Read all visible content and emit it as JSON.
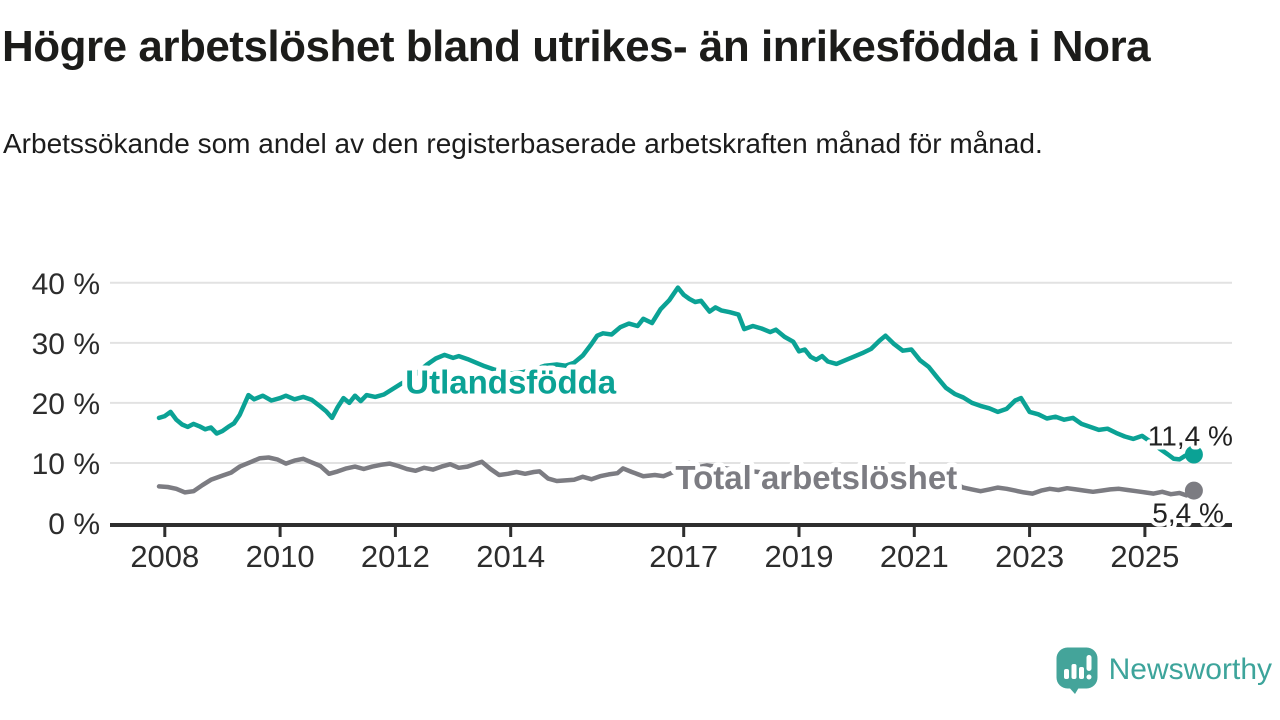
{
  "title": "Högre arbetslöshet bland utrikes- än inrikesfödda i Nora",
  "subtitle": "Arbetssökande som andel av den registerbaserade arbetskraften månad för månad.",
  "branding": {
    "name": "Newsworthy",
    "icon": "speech-bubble-bar-chart-icon",
    "color": "#3da49b"
  },
  "colors": {
    "foreign_born_line": "#0ba295",
    "total_line": "#7c7c82",
    "grid": "#e2e2e2",
    "axis": "#2e2e2e",
    "tick_text": "#2d2d2d",
    "annotation_text": "#222222",
    "background": "#ffffff"
  },
  "chart_data": {
    "type": "line",
    "title": "Högre arbetslöshet bland utrikes- än inrikesfödda i Nora",
    "subtitle": "Arbetssökande som andel av den registerbaserade arbetskraften månad för månad.",
    "x_unit": "year",
    "y_unit": "percent of registered labour force",
    "xlim": [
      2007.05,
      2026.51
    ],
    "ylim": [
      0,
      43.3
    ],
    "grid": "horizontal",
    "legend": "inline-labels",
    "x_ticks": [
      {
        "value": 2008,
        "label": "2008"
      },
      {
        "value": 2010,
        "label": "2010"
      },
      {
        "value": 2012,
        "label": "2012"
      },
      {
        "value": 2014,
        "label": "2014"
      },
      {
        "value": 2017,
        "label": "2017"
      },
      {
        "value": 2019,
        "label": "2019"
      },
      {
        "value": 2021,
        "label": "2021"
      },
      {
        "value": 2023,
        "label": "2023"
      },
      {
        "value": 2025,
        "label": "2025"
      }
    ],
    "y_ticks": [
      {
        "value": 0,
        "label": "0 %"
      },
      {
        "value": 10,
        "label": "10 %"
      },
      {
        "value": 20,
        "label": "20 %"
      },
      {
        "value": 30,
        "label": "30 %"
      },
      {
        "value": 40,
        "label": "40 %"
      }
    ],
    "series": [
      {
        "id": "utlandsfodda",
        "name": "Utlandsfödda",
        "color": "#0ba295",
        "end_label": "11,4 %",
        "last_value": 11.4,
        "label_anchor": {
          "x": 2014.0,
          "y": 23.6
        },
        "points": [
          [
            2007.9,
            17.5
          ],
          [
            2008.0,
            17.8
          ],
          [
            2008.1,
            18.5
          ],
          [
            2008.2,
            17.2
          ],
          [
            2008.3,
            16.4
          ],
          [
            2008.4,
            16.0
          ],
          [
            2008.5,
            16.5
          ],
          [
            2008.6,
            16.1
          ],
          [
            2008.7,
            15.6
          ],
          [
            2008.8,
            15.9
          ],
          [
            2008.9,
            14.9
          ],
          [
            2009.0,
            15.3
          ],
          [
            2009.1,
            16.0
          ],
          [
            2009.2,
            16.6
          ],
          [
            2009.3,
            18.0
          ],
          [
            2009.45,
            21.3
          ],
          [
            2009.55,
            20.6
          ],
          [
            2009.7,
            21.2
          ],
          [
            2009.85,
            20.4
          ],
          [
            2010.0,
            20.8
          ],
          [
            2010.1,
            21.2
          ],
          [
            2010.25,
            20.6
          ],
          [
            2010.4,
            21.0
          ],
          [
            2010.55,
            20.5
          ],
          [
            2010.7,
            19.4
          ],
          [
            2010.8,
            18.6
          ],
          [
            2010.9,
            17.5
          ],
          [
            2011.0,
            19.3
          ],
          [
            2011.1,
            20.8
          ],
          [
            2011.2,
            20.0
          ],
          [
            2011.3,
            21.2
          ],
          [
            2011.4,
            20.3
          ],
          [
            2011.5,
            21.3
          ],
          [
            2011.65,
            21.0
          ],
          [
            2011.8,
            21.4
          ],
          [
            2011.95,
            22.3
          ],
          [
            2012.1,
            23.2
          ],
          [
            2012.25,
            24.0
          ],
          [
            2012.4,
            25.2
          ],
          [
            2012.55,
            26.4
          ],
          [
            2012.7,
            27.4
          ],
          [
            2012.85,
            28.0
          ],
          [
            2013.0,
            27.5
          ],
          [
            2013.1,
            27.8
          ],
          [
            2013.25,
            27.3
          ],
          [
            2013.4,
            26.7
          ],
          [
            2013.55,
            26.1
          ],
          [
            2013.7,
            25.6
          ],
          [
            2013.85,
            25.2
          ],
          [
            2014.0,
            24.9
          ],
          [
            2014.2,
            25.1
          ],
          [
            2014.4,
            25.6
          ],
          [
            2014.6,
            26.2
          ],
          [
            2014.8,
            26.4
          ],
          [
            2014.95,
            26.2
          ],
          [
            2015.1,
            26.7
          ],
          [
            2015.25,
            27.9
          ],
          [
            2015.4,
            29.8
          ],
          [
            2015.5,
            31.2
          ],
          [
            2015.6,
            31.6
          ],
          [
            2015.75,
            31.4
          ],
          [
            2015.9,
            32.6
          ],
          [
            2016.05,
            33.2
          ],
          [
            2016.2,
            32.8
          ],
          [
            2016.3,
            34.0
          ],
          [
            2016.45,
            33.3
          ],
          [
            2016.6,
            35.6
          ],
          [
            2016.75,
            37.1
          ],
          [
            2016.9,
            39.2
          ],
          [
            2017.0,
            38.0
          ],
          [
            2017.1,
            37.3
          ],
          [
            2017.2,
            36.8
          ],
          [
            2017.3,
            37.0
          ],
          [
            2017.45,
            35.2
          ],
          [
            2017.55,
            35.9
          ],
          [
            2017.65,
            35.4
          ],
          [
            2017.8,
            35.1
          ],
          [
            2017.95,
            34.7
          ],
          [
            2018.05,
            32.3
          ],
          [
            2018.2,
            32.8
          ],
          [
            2018.35,
            32.4
          ],
          [
            2018.5,
            31.8
          ],
          [
            2018.6,
            32.2
          ],
          [
            2018.75,
            31.0
          ],
          [
            2018.9,
            30.2
          ],
          [
            2019.0,
            28.6
          ],
          [
            2019.1,
            28.9
          ],
          [
            2019.2,
            27.7
          ],
          [
            2019.3,
            27.2
          ],
          [
            2019.4,
            27.8
          ],
          [
            2019.5,
            26.9
          ],
          [
            2019.65,
            26.5
          ],
          [
            2019.8,
            27.1
          ],
          [
            2019.95,
            27.7
          ],
          [
            2020.1,
            28.3
          ],
          [
            2020.25,
            29.0
          ],
          [
            2020.4,
            30.4
          ],
          [
            2020.5,
            31.2
          ],
          [
            2020.65,
            29.8
          ],
          [
            2020.8,
            28.7
          ],
          [
            2020.95,
            28.9
          ],
          [
            2021.1,
            27.1
          ],
          [
            2021.25,
            26.0
          ],
          [
            2021.4,
            24.2
          ],
          [
            2021.55,
            22.5
          ],
          [
            2021.7,
            21.5
          ],
          [
            2021.85,
            20.9
          ],
          [
            2022.0,
            20.0
          ],
          [
            2022.15,
            19.5
          ],
          [
            2022.3,
            19.1
          ],
          [
            2022.45,
            18.5
          ],
          [
            2022.6,
            19.0
          ],
          [
            2022.75,
            20.4
          ],
          [
            2022.85,
            20.8
          ],
          [
            2023.0,
            18.5
          ],
          [
            2023.15,
            18.1
          ],
          [
            2023.3,
            17.4
          ],
          [
            2023.45,
            17.7
          ],
          [
            2023.6,
            17.2
          ],
          [
            2023.75,
            17.5
          ],
          [
            2023.9,
            16.5
          ],
          [
            2024.05,
            16.0
          ],
          [
            2024.2,
            15.5
          ],
          [
            2024.35,
            15.7
          ],
          [
            2024.5,
            15.0
          ],
          [
            2024.65,
            14.4
          ],
          [
            2024.8,
            14.0
          ],
          [
            2024.95,
            14.5
          ],
          [
            2025.1,
            13.5
          ],
          [
            2025.25,
            12.4
          ],
          [
            2025.4,
            11.4
          ],
          [
            2025.5,
            10.7
          ],
          [
            2025.6,
            10.6
          ],
          [
            2025.7,
            11.2
          ],
          [
            2025.85,
            11.4
          ]
        ]
      },
      {
        "id": "total-arbetsloshet",
        "name": "Total arbetslöshet",
        "color": "#7c7c82",
        "end_label": "5,4 %",
        "last_value": 5.4,
        "label_anchor": {
          "x": 2019.3,
          "y": 7.7
        },
        "points": [
          [
            2007.9,
            6.1
          ],
          [
            2008.05,
            6.0
          ],
          [
            2008.2,
            5.7
          ],
          [
            2008.35,
            5.1
          ],
          [
            2008.5,
            5.3
          ],
          [
            2008.65,
            6.3
          ],
          [
            2008.8,
            7.2
          ],
          [
            2009.0,
            7.9
          ],
          [
            2009.15,
            8.4
          ],
          [
            2009.3,
            9.4
          ],
          [
            2009.5,
            10.2
          ],
          [
            2009.65,
            10.8
          ],
          [
            2009.8,
            10.9
          ],
          [
            2009.95,
            10.6
          ],
          [
            2010.1,
            9.9
          ],
          [
            2010.25,
            10.4
          ],
          [
            2010.4,
            10.7
          ],
          [
            2010.55,
            10.1
          ],
          [
            2010.7,
            9.5
          ],
          [
            2010.85,
            8.2
          ],
          [
            2011.0,
            8.6
          ],
          [
            2011.15,
            9.1
          ],
          [
            2011.3,
            9.4
          ],
          [
            2011.45,
            9.0
          ],
          [
            2011.6,
            9.4
          ],
          [
            2011.75,
            9.7
          ],
          [
            2011.9,
            9.9
          ],
          [
            2012.05,
            9.5
          ],
          [
            2012.2,
            9.0
          ],
          [
            2012.35,
            8.7
          ],
          [
            2012.5,
            9.2
          ],
          [
            2012.65,
            8.9
          ],
          [
            2012.8,
            9.4
          ],
          [
            2012.95,
            9.8
          ],
          [
            2013.1,
            9.2
          ],
          [
            2013.25,
            9.4
          ],
          [
            2013.4,
            9.9
          ],
          [
            2013.5,
            10.2
          ],
          [
            2013.65,
            9.0
          ],
          [
            2013.8,
            8.0
          ],
          [
            2013.95,
            8.2
          ],
          [
            2014.1,
            8.5
          ],
          [
            2014.25,
            8.2
          ],
          [
            2014.4,
            8.5
          ],
          [
            2014.5,
            8.6
          ],
          [
            2014.65,
            7.4
          ],
          [
            2014.8,
            7.0
          ],
          [
            2014.95,
            7.1
          ],
          [
            2015.1,
            7.2
          ],
          [
            2015.25,
            7.7
          ],
          [
            2015.4,
            7.3
          ],
          [
            2015.55,
            7.8
          ],
          [
            2015.7,
            8.1
          ],
          [
            2015.85,
            8.3
          ],
          [
            2015.95,
            9.1
          ],
          [
            2016.1,
            8.5
          ],
          [
            2016.3,
            7.8
          ],
          [
            2016.5,
            8.0
          ],
          [
            2016.65,
            7.8
          ],
          [
            2016.8,
            8.4
          ],
          [
            2016.95,
            9.8
          ],
          [
            2017.1,
            10.0
          ],
          [
            2017.25,
            9.3
          ],
          [
            2017.4,
            9.6
          ],
          [
            2017.6,
            9.3
          ],
          [
            2017.8,
            9.0
          ],
          [
            2018.1,
            8.7
          ],
          [
            2018.4,
            8.4
          ],
          [
            2018.7,
            8.1
          ],
          [
            2019.0,
            7.9
          ],
          [
            2019.4,
            7.7
          ],
          [
            2019.8,
            7.8
          ],
          [
            2020.2,
            8.3
          ],
          [
            2020.5,
            8.6
          ],
          [
            2020.75,
            8.2
          ],
          [
            2020.95,
            7.4
          ],
          [
            2021.1,
            6.9
          ],
          [
            2021.25,
            6.4
          ],
          [
            2021.4,
            6.8
          ],
          [
            2021.55,
            6.3
          ],
          [
            2021.7,
            6.6
          ],
          [
            2021.85,
            5.9
          ],
          [
            2022.0,
            5.6
          ],
          [
            2022.15,
            5.3
          ],
          [
            2022.3,
            5.6
          ],
          [
            2022.45,
            5.9
          ],
          [
            2022.6,
            5.7
          ],
          [
            2022.75,
            5.4
          ],
          [
            2022.9,
            5.1
          ],
          [
            2023.05,
            4.9
          ],
          [
            2023.2,
            5.4
          ],
          [
            2023.35,
            5.7
          ],
          [
            2023.5,
            5.5
          ],
          [
            2023.65,
            5.8
          ],
          [
            2023.8,
            5.6
          ],
          [
            2023.95,
            5.4
          ],
          [
            2024.1,
            5.2
          ],
          [
            2024.25,
            5.4
          ],
          [
            2024.4,
            5.6
          ],
          [
            2024.55,
            5.7
          ],
          [
            2024.7,
            5.5
          ],
          [
            2024.85,
            5.3
          ],
          [
            2025.0,
            5.1
          ],
          [
            2025.15,
            4.9
          ],
          [
            2025.3,
            5.2
          ],
          [
            2025.45,
            4.8
          ],
          [
            2025.6,
            5.0
          ],
          [
            2025.72,
            4.6
          ],
          [
            2025.85,
            5.4
          ]
        ]
      }
    ]
  }
}
